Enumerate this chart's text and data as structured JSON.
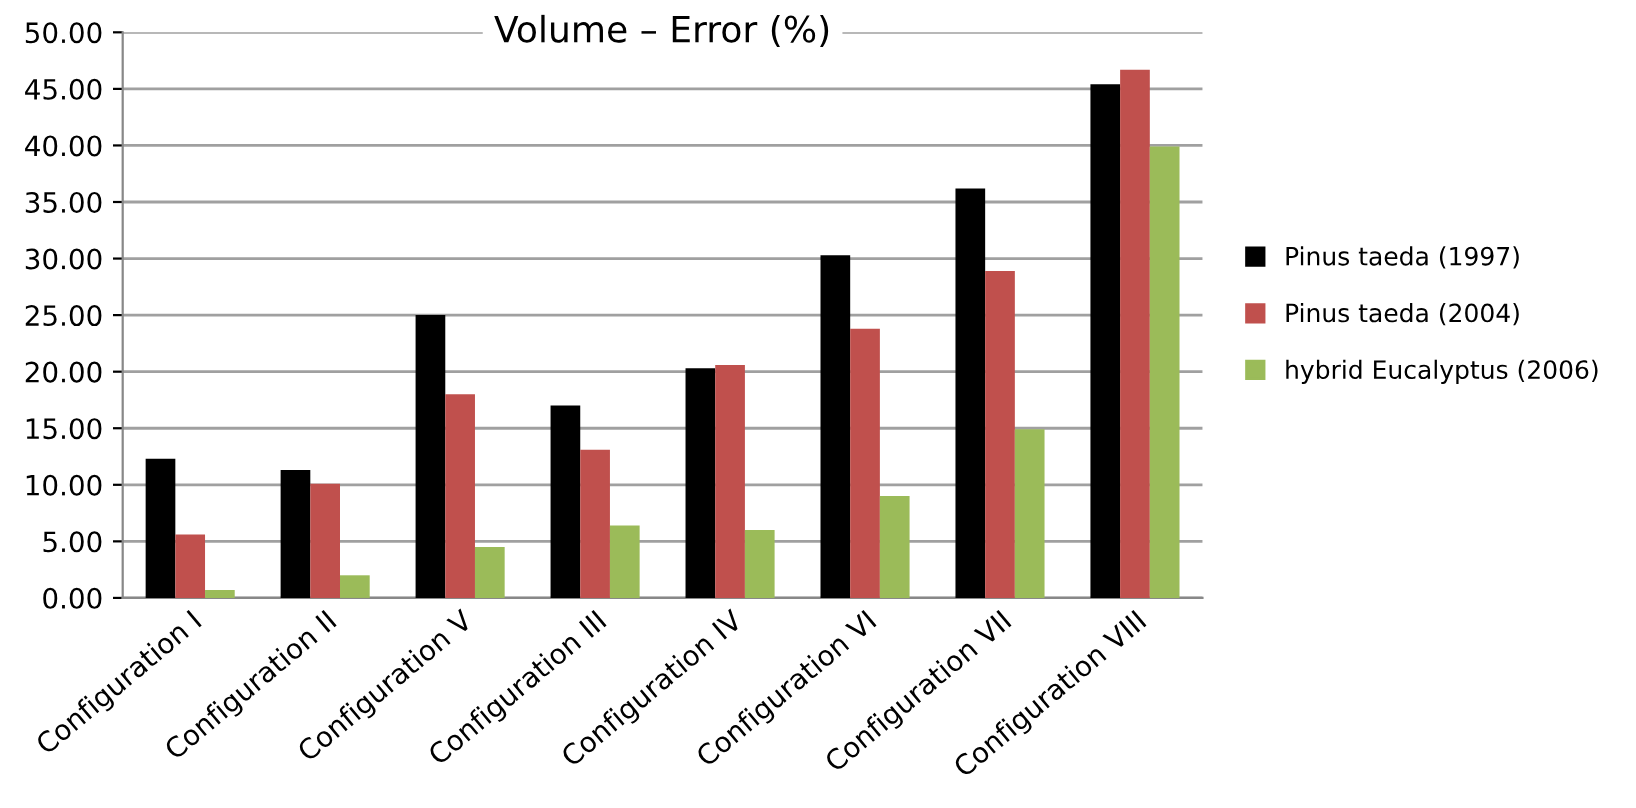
{
  "chart_data": {
    "type": "bar",
    "title": "Volume – Error (%)",
    "categories": [
      "Configuration I",
      "Configuration II",
      "Configuration V",
      "Configuration III",
      "Configuration IV",
      "Configuration VI",
      "Configuration VII",
      "Configuration VIII"
    ],
    "series": [
      {
        "name": "Pinus taeda (1997)",
        "color": "#000000",
        "values": [
          12.3,
          11.3,
          25.0,
          17.0,
          20.3,
          30.3,
          36.2,
          45.4
        ]
      },
      {
        "name": "Pinus taeda (2004)",
        "color": "#c0504d",
        "values": [
          5.6,
          10.1,
          18.0,
          13.1,
          20.6,
          23.8,
          28.9,
          46.7
        ]
      },
      {
        "name": "hybrid Eucalyptus (2006)",
        "color": "#9bbb59",
        "values": [
          0.7,
          2.0,
          4.5,
          6.4,
          6.0,
          9.0,
          14.9,
          39.9
        ]
      }
    ],
    "ylim": [
      0,
      50
    ],
    "yticks": [
      {
        "value": 0,
        "label": "0.00"
      },
      {
        "value": 5,
        "label": "5.00"
      },
      {
        "value": 10,
        "label": "10.00"
      },
      {
        "value": 15,
        "label": "15.00"
      },
      {
        "value": 20,
        "label": "20.00"
      },
      {
        "value": 25,
        "label": "25.00"
      },
      {
        "value": 30,
        "label": "30.00"
      },
      {
        "value": 35,
        "label": "35.00"
      },
      {
        "value": 40,
        "label": "40.00"
      },
      {
        "value": 45,
        "label": "45.00"
      },
      {
        "value": 50,
        "label": "50.00"
      }
    ],
    "grid": "y",
    "legend": "right"
  }
}
